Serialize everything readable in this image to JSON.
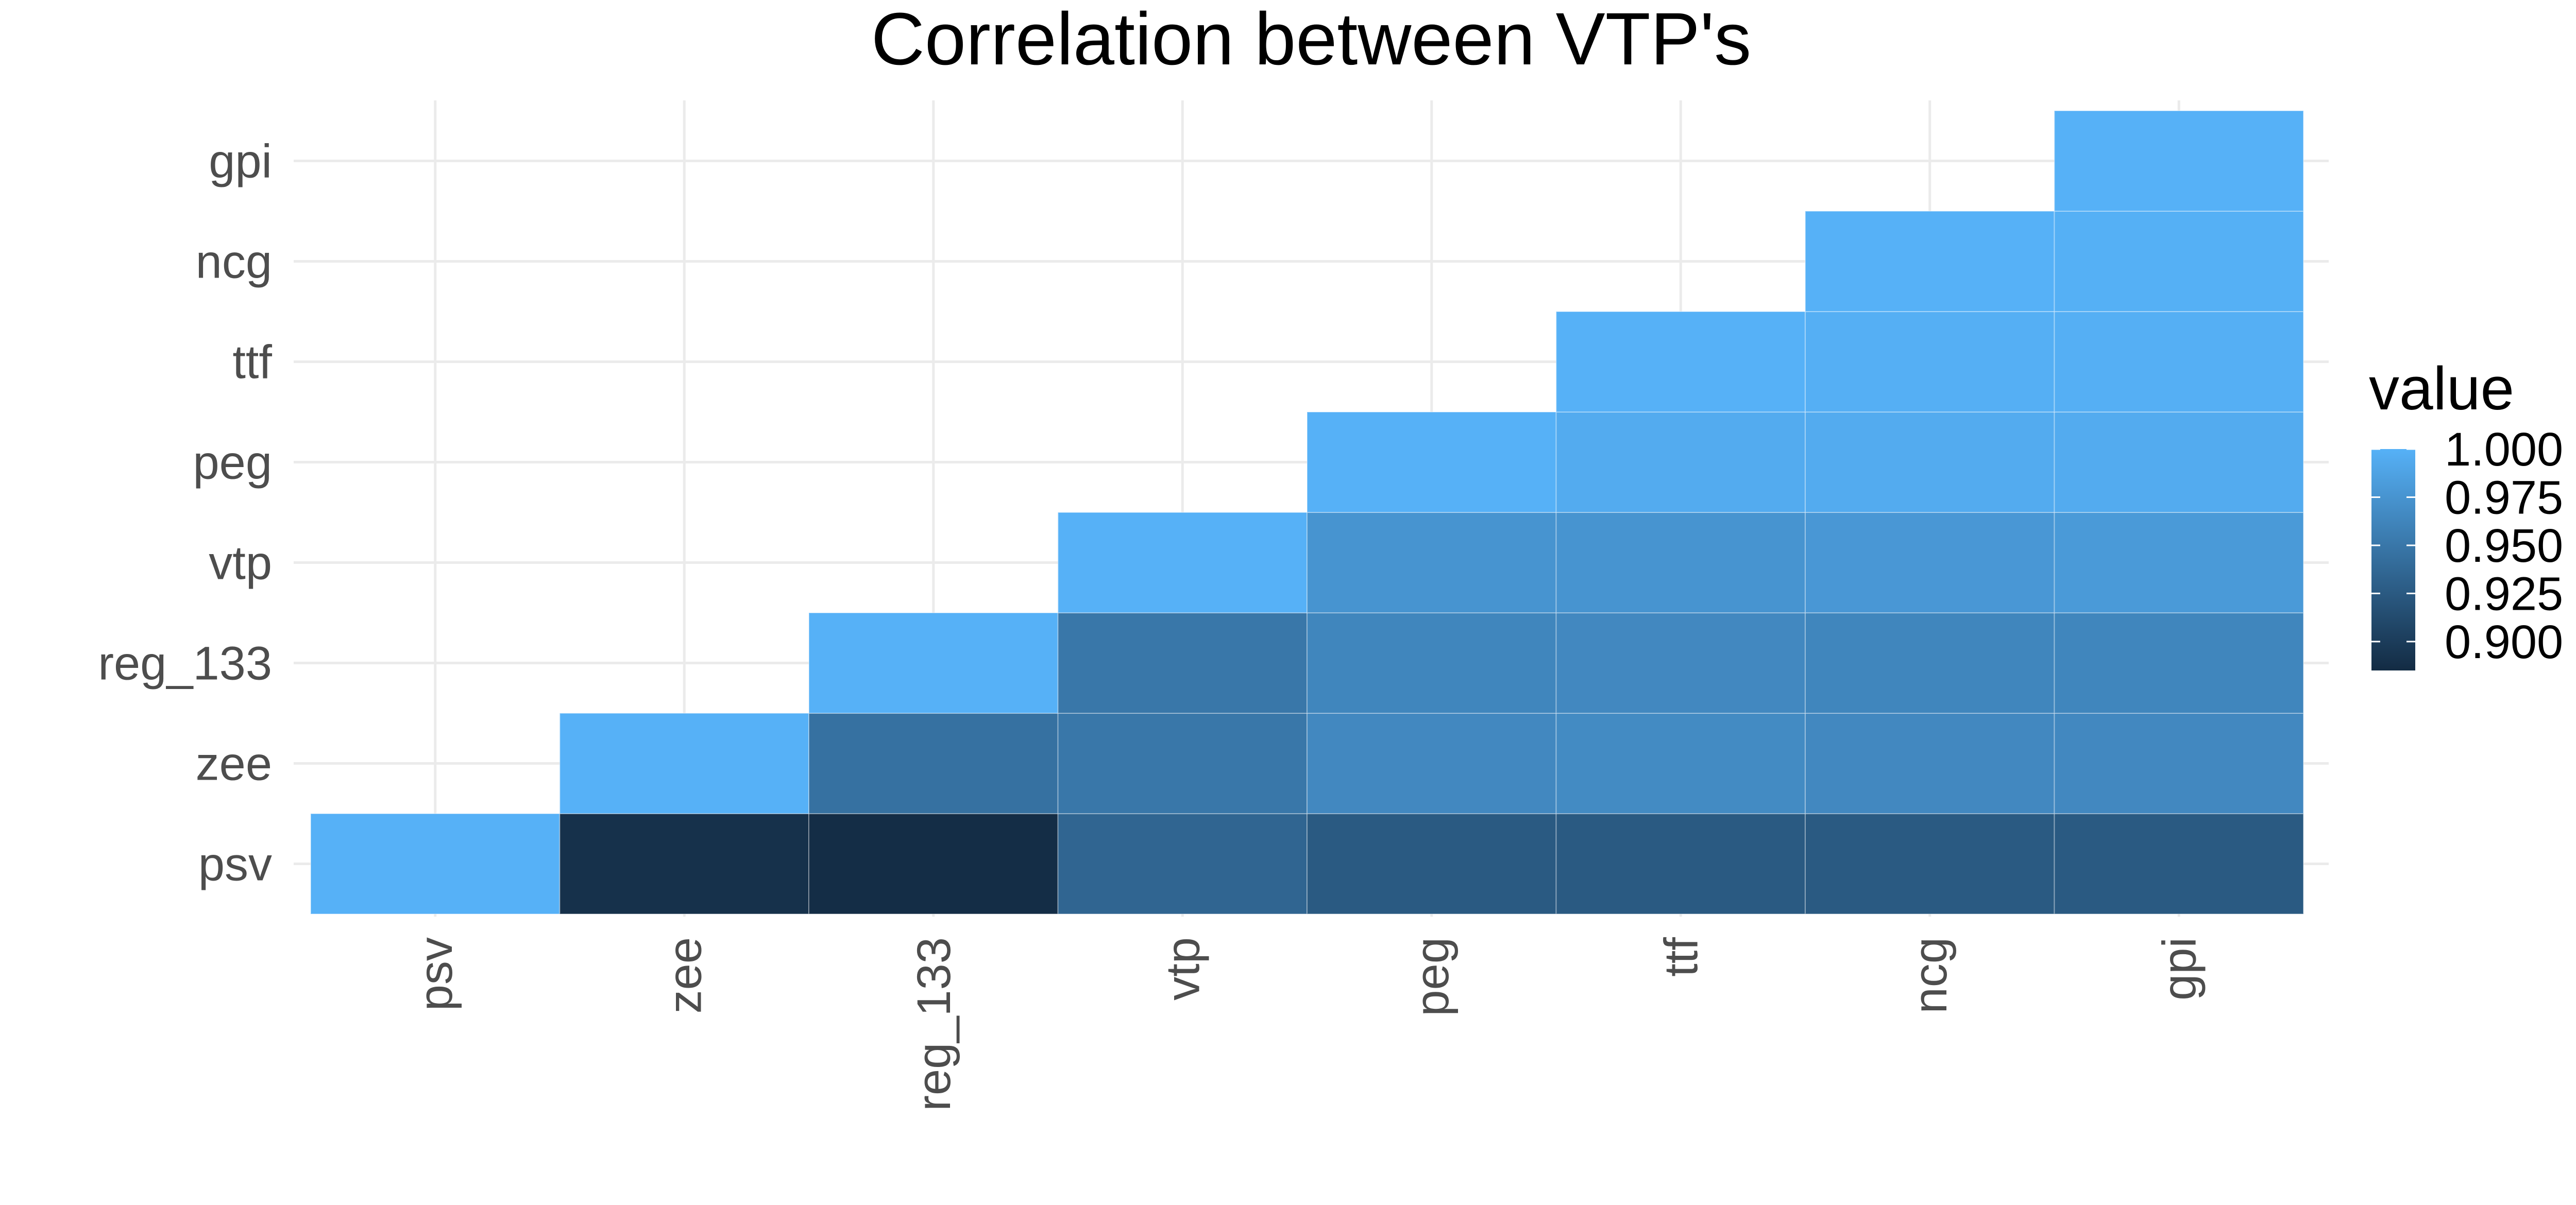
{
  "chart_data": {
    "type": "heatmap",
    "title": "Correlation between VTP's",
    "xlabel": "",
    "ylabel": "",
    "x_categories": [
      "psv",
      "zee",
      "reg_133",
      "vtp",
      "peg",
      "ttf",
      "ncg",
      "gpi"
    ],
    "y_categories": [
      "psv",
      "zee",
      "reg_133",
      "vtp",
      "peg",
      "ttf",
      "ncg",
      "gpi"
    ],
    "triangle": "upper",
    "values": [
      [
        1.0,
        0.89,
        0.887,
        0.935,
        0.925,
        0.925,
        0.925,
        0.925
      ],
      [
        null,
        1.0,
        0.945,
        0.95,
        0.965,
        0.967,
        0.965,
        0.965
      ],
      [
        null,
        null,
        1.0,
        0.95,
        0.963,
        0.965,
        0.963,
        0.963
      ],
      [
        null,
        null,
        null,
        1.0,
        0.975,
        0.975,
        0.978,
        0.98
      ],
      [
        null,
        null,
        null,
        null,
        1.0,
        0.995,
        0.995,
        0.995
      ],
      [
        null,
        null,
        null,
        null,
        null,
        1.0,
        0.998,
        0.998
      ],
      [
        null,
        null,
        null,
        null,
        null,
        null,
        1.0,
        0.999
      ],
      [
        null,
        null,
        null,
        null,
        null,
        null,
        null,
        1.0
      ]
    ],
    "colorscale": {
      "min": 0.885,
      "max": 1.0,
      "low_color": "#132B43",
      "high_color": "#56B1F7"
    },
    "legend": {
      "title": "value",
      "position": "right",
      "ticks": [
        1.0,
        0.975,
        0.95,
        0.925,
        0.9
      ],
      "tick_labels": [
        "1.000",
        "0.975",
        "0.950",
        "0.925",
        "0.900"
      ]
    },
    "grid": true
  }
}
